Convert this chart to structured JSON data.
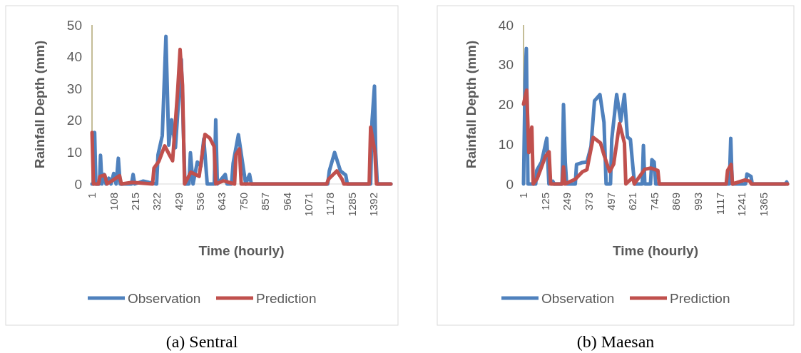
{
  "chart_data": [
    {
      "type": "line",
      "title": "(a)  Sentral",
      "xlabel": "Time (hourly)",
      "ylabel": "Rainfall Depth (mm)",
      "xlim": [
        1,
        1477
      ],
      "xticks": [
        1,
        108,
        215,
        322,
        429,
        536,
        643,
        750,
        857,
        964,
        1071,
        1178,
        1285,
        1392
      ],
      "ylim": [
        0,
        50
      ],
      "yticks": [
        0,
        10,
        20,
        30,
        40,
        50
      ],
      "legend": "bottom",
      "series": [
        {
          "name": "Observation",
          "color": "#4f81bd",
          "x": [
            1,
            8,
            14,
            20,
            38,
            43,
            50,
            61,
            70,
            84,
            95,
            108,
            120,
            131,
            140,
            196,
            204,
            212,
            254,
            281,
            320,
            327,
            348,
            366,
            380,
            394,
            413,
            442,
            460,
            480,
            487,
            500,
            521,
            539,
            553,
            570,
            605,
            612,
            620,
            659,
            668,
            690,
            698,
            724,
            750,
            760,
            779,
            788,
            1165,
            1173,
            1199,
            1228,
            1254,
            1262,
            1377,
            1384,
            1396,
            1402,
            1410,
            1477
          ],
          "values": [
            0,
            0,
            16.2,
            0,
            0,
            9,
            0,
            3,
            0,
            1.8,
            0,
            3.3,
            0,
            8.1,
            0,
            0,
            3,
            0,
            0.9,
            0.5,
            0,
            9.2,
            15.2,
            46.4,
            12.2,
            20.2,
            11.4,
            39.2,
            0,
            0,
            9.8,
            0,
            6.9,
            5.6,
            14.2,
            0,
            0,
            20.2,
            0,
            3,
            0,
            0,
            6.5,
            15.5,
            4.3,
            0,
            3,
            0,
            0,
            4.1,
            9.9,
            4.1,
            2.8,
            0,
            0,
            19.7,
            30.8,
            9.9,
            0,
            0
          ]
        },
        {
          "name": "Prediction",
          "color": "#c0504d",
          "x": [
            1,
            8,
            33,
            40,
            64,
            75,
            102,
            137,
            146,
            199,
            300,
            307,
            331,
            360,
            383,
            399,
            424,
            436,
            448,
            458,
            489,
            530,
            559,
            583,
            604,
            612,
            651,
            705,
            712,
            729,
            738,
            1160,
            1169,
            1210,
            1236,
            1245,
            1370,
            1377,
            1398,
            1406,
            1477
          ],
          "values": [
            16.2,
            0,
            0,
            2.4,
            2.8,
            0,
            1.1,
            2.6,
            0,
            0.5,
            0,
            5,
            7.1,
            12,
            9.2,
            7.3,
            29.3,
            42.3,
            31,
            0,
            3.7,
            2.4,
            15.6,
            14.4,
            11.8,
            0,
            1,
            0,
            9.2,
            11,
            0,
            0,
            1.5,
            4.1,
            1.5,
            0,
            0,
            17.8,
            10.1,
            0,
            0
          ]
        }
      ]
    },
    {
      "type": "line",
      "title": "(b)  Maesan",
      "xlabel": "Time (hourly)",
      "ylabel": "Rainfall Depth (mm)",
      "xlim": [
        1,
        1500
      ],
      "xticks": [
        1,
        125,
        249,
        373,
        497,
        621,
        745,
        869,
        993,
        1117,
        1241,
        1365
      ],
      "ylim": [
        0,
        40
      ],
      "yticks": [
        0,
        10,
        20,
        30,
        40
      ],
      "legend": "bottom",
      "series": [
        {
          "name": "Observation",
          "color": "#4f81bd",
          "x": [
            1,
            10,
            17,
            26,
            70,
            76,
            103,
            133,
            145,
            167,
            175,
            220,
            228,
            238,
            246,
            295,
            302,
            336,
            361,
            384,
            404,
            435,
            458,
            470,
            495,
            502,
            530,
            553,
            574,
            591,
            608,
            624,
            632,
            675,
            682,
            690,
            722,
            730,
            743,
            752,
            1170,
            1178,
            1186,
            1262,
            1270,
            1293,
            1300,
            1488,
            1496,
            1500
          ],
          "values": [
            0,
            26,
            34.1,
            0,
            0,
            3.4,
            5.5,
            11.5,
            0,
            0.7,
            0,
            0,
            20,
            5.5,
            0,
            0,
            4.9,
            5.4,
            5.5,
            9.4,
            20.9,
            22.5,
            15.5,
            0,
            0,
            11.2,
            22.5,
            15.8,
            22.5,
            11.8,
            11.2,
            3.4,
            0,
            0,
            9.7,
            0,
            0,
            6.1,
            5.5,
            0,
            0,
            11.5,
            0,
            0,
            2.5,
            1.9,
            0,
            0,
            0.5,
            0
          ]
        },
        {
          "name": "Prediction",
          "color": "#c0504d",
          "x": [
            1,
            19,
            31,
            48,
            56,
            78,
            126,
            146,
            155,
            220,
            228,
            236,
            295,
            336,
            361,
            397,
            438,
            458,
            490,
            513,
            546,
            574,
            582,
            621,
            630,
            689,
            723,
            764,
            772,
            1152,
            1160,
            1180,
            1188,
            1259,
            1286,
            1295,
            1500
          ],
          "values": [
            20.1,
            23.6,
            7.9,
            14.3,
            0,
            1.3,
            7,
            8.1,
            0,
            0,
            4.3,
            0,
            1.2,
            3.1,
            3.6,
            11.7,
            10.3,
            7.3,
            3.1,
            5,
            15.2,
            10.3,
            0,
            1.6,
            0,
            3.7,
            4,
            3.4,
            0,
            0,
            3.4,
            4.9,
            0,
            1,
            0.7,
            0,
            0
          ]
        }
      ]
    }
  ]
}
